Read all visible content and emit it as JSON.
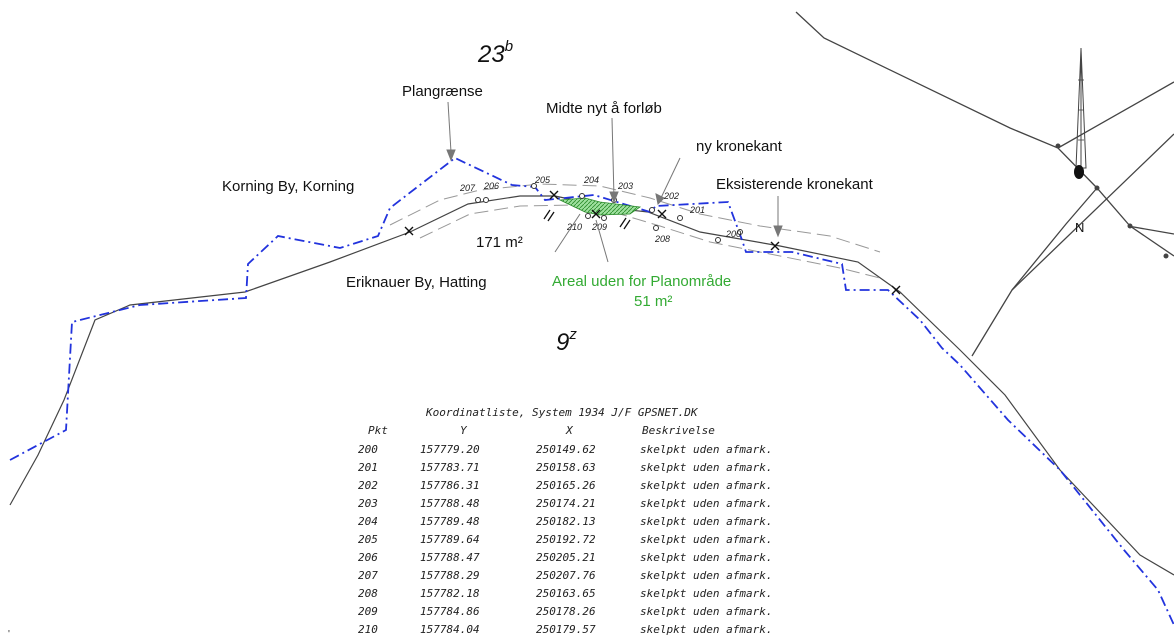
{
  "parcels": {
    "north": "23",
    "north_sup": "b",
    "south": "9",
    "south_sup": "z"
  },
  "labels": {
    "plangraense": "Plangrænse",
    "midte": "Midte nyt å forløb",
    "ny_kronekant": "ny kronekant",
    "korning": "Korning By, Korning",
    "eksisterende": "Eksisterende kronekant",
    "area_171": "171 m²",
    "eriknauer": "Eriknauer By, Hatting",
    "areal_uden": "Areal uden for Planområde",
    "area_51": "51 m²",
    "north_arrow": "N"
  },
  "points": [
    "207",
    "206",
    "205",
    "204",
    "203",
    "202",
    "201",
    "200",
    "208",
    "209",
    "210"
  ],
  "colors": {
    "plan_boundary": "#2233dd",
    "green_area": "#33aa33",
    "line": "#333333"
  },
  "table": {
    "title": "Koordinatliste, System 1934 J/F GPSNET.DK",
    "headers": [
      "Pkt",
      "Y",
      "X",
      "Beskrivelse"
    ],
    "rows": [
      [
        "200",
        "157779.20",
        "250149.62",
        "skelpkt uden afmark."
      ],
      [
        "201",
        "157783.71",
        "250158.63",
        "skelpkt uden afmark."
      ],
      [
        "202",
        "157786.31",
        "250165.26",
        "skelpkt uden afmark."
      ],
      [
        "203",
        "157788.48",
        "250174.21",
        "skelpkt uden afmark."
      ],
      [
        "204",
        "157789.48",
        "250182.13",
        "skelpkt uden afmark."
      ],
      [
        "205",
        "157789.64",
        "250192.72",
        "skelpkt uden afmark."
      ],
      [
        "206",
        "157788.47",
        "250205.21",
        "skelpkt uden afmark."
      ],
      [
        "207",
        "157788.29",
        "250207.76",
        "skelpkt uden afmark."
      ],
      [
        "208",
        "157782.18",
        "250163.65",
        "skelpkt uden afmark."
      ],
      [
        "209",
        "157784.86",
        "250178.26",
        "skelpkt uden afmark."
      ],
      [
        "210",
        "157784.04",
        "250179.57",
        "skelpkt uden afmark."
      ]
    ]
  }
}
